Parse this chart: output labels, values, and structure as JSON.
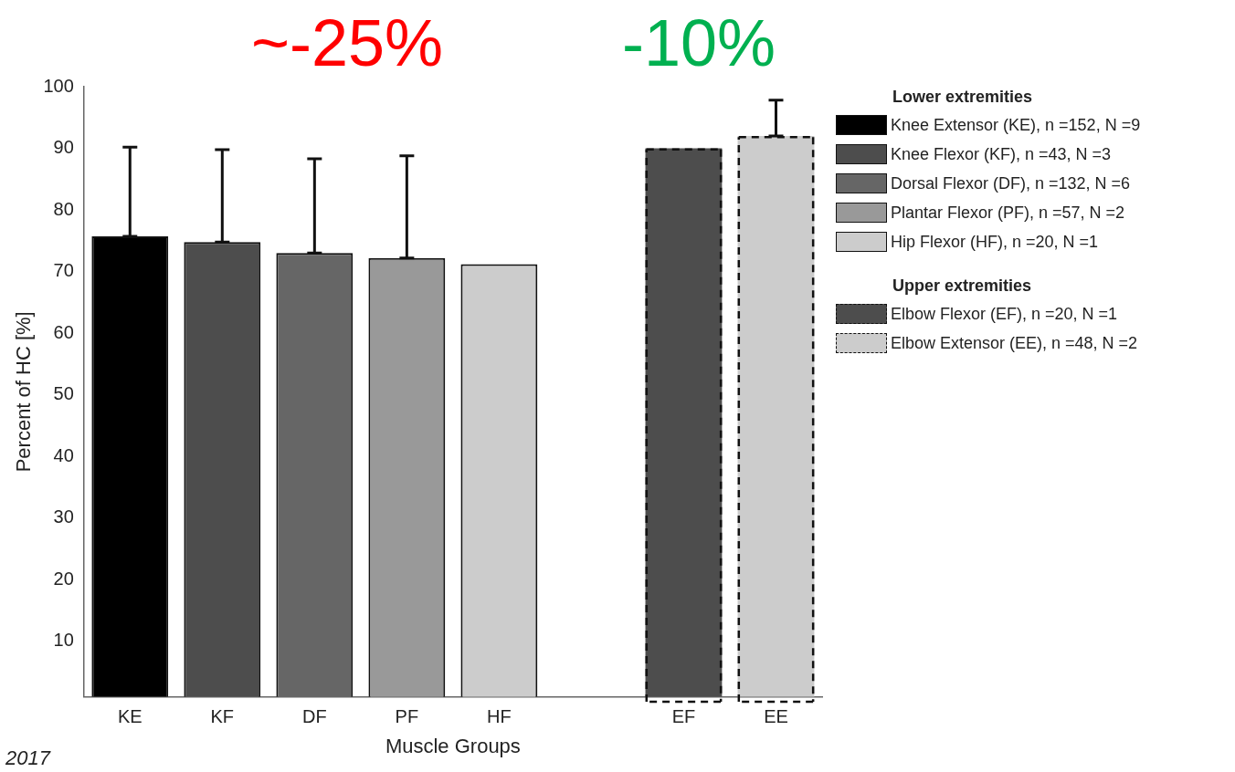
{
  "chart_data": {
    "type": "bar",
    "xlabel": "Muscle Groups",
    "ylabel": "Percent of HC [%]",
    "categories": [
      "KE",
      "KF",
      "DF",
      "PF",
      "HF",
      null,
      "EF",
      "EE"
    ],
    "ylim": [
      1,
      100
    ],
    "yticks": [
      10,
      20,
      30,
      40,
      50,
      60,
      70,
      80,
      90,
      100
    ],
    "grid": false,
    "legend": "top right",
    "annotations": [
      "~-25%",
      "-10%",
      "Lower extremities",
      "Upper extremities",
      "2017"
    ],
    "series": [
      {
        "name": "Knee Extensor (KE), n =152, N =9",
        "color": "#000000",
        "values": [
          75.7,
          null,
          null,
          null,
          null,
          null,
          null,
          null
        ],
        "errors": [
          [
            75.7,
            90.2
          ],
          null,
          null,
          null,
          null,
          null,
          null,
          null
        ]
      },
      {
        "name": "Knee Flexor (KF), n =43, N =3",
        "color": "#4d4d4d",
        "values": [
          null,
          74.8,
          null,
          null,
          null,
          null,
          null,
          null
        ],
        "errors": [
          null,
          [
            74.8,
            89.8
          ],
          null,
          null,
          null,
          null,
          null,
          null
        ]
      },
      {
        "name": "Dorsal Flexor (DF), n =132, N =6",
        "color": "#666666",
        "values": [
          null,
          null,
          73,
          null,
          null,
          null,
          null,
          null
        ],
        "errors": [
          null,
          null,
          [
            73,
            88.3
          ],
          null,
          null,
          null,
          null,
          null
        ]
      },
      {
        "name": "Plantar Flexor (PF), n =57, N =2",
        "color": "#999999",
        "values": [
          null,
          null,
          null,
          72.2,
          null,
          null,
          null,
          null
        ],
        "errors": [
          null,
          null,
          null,
          [
            72.2,
            88.8
          ],
          null,
          null,
          null,
          null
        ]
      },
      {
        "name": "Hip Flexor (HF), n =20, N =1",
        "color": "#cccccc",
        "values": [
          null,
          null,
          null,
          null,
          71.2,
          null,
          null,
          null
        ]
      },
      {
        "name": "Elbow Flexor (EF), n =20, N =1",
        "color": "#4d4d4d",
        "line_style": "dashed",
        "values": [
          null,
          null,
          null,
          null,
          null,
          null,
          90,
          null
        ]
      },
      {
        "name": "Elbow Extensor (EE), n =48, N =2",
        "color": "#cccccc",
        "line_style": "dashed",
        "values": [
          null,
          null,
          null,
          null,
          null,
          null,
          null,
          92
        ],
        "errors": [
          null,
          null,
          null,
          null,
          null,
          null,
          null,
          [
            92,
            97.8
          ]
        ]
      }
    ]
  }
}
